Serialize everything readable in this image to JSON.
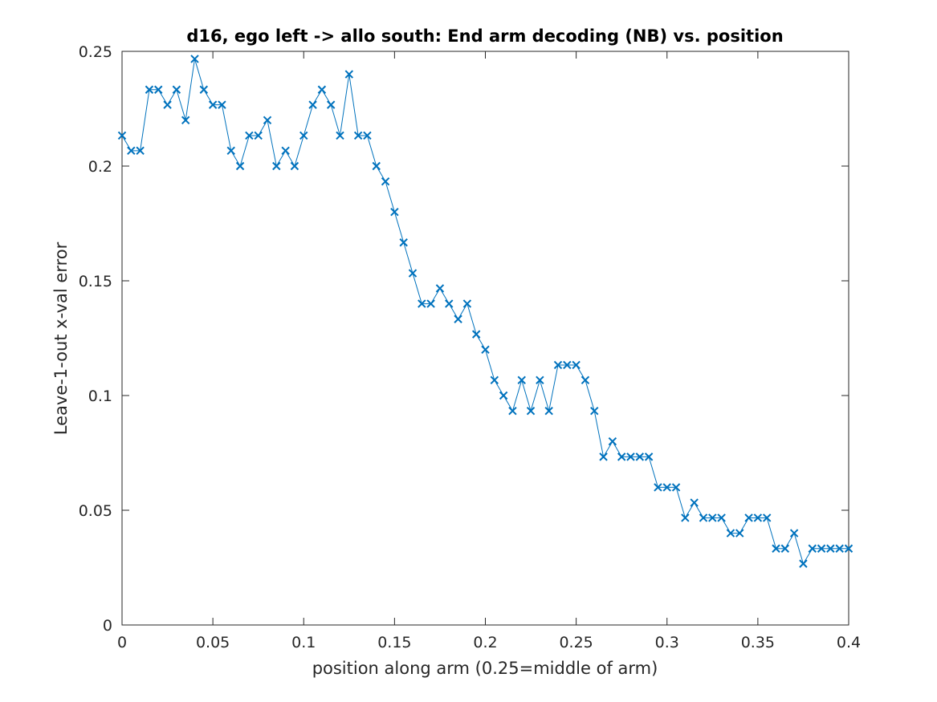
{
  "chart_data": {
    "type": "line",
    "title": "d16, ego left -> allo south: End arm decoding (NB) vs. position",
    "xlabel": "position along arm (0.25=middle of arm)",
    "ylabel": "Leave-1-out x-val error",
    "xlim": [
      0,
      0.4
    ],
    "ylim": [
      0,
      0.25
    ],
    "xticks": [
      0,
      0.05,
      0.1,
      0.15,
      0.2,
      0.25,
      0.3,
      0.35,
      0.4
    ],
    "xtick_labels": [
      "0",
      "0.05",
      "0.1",
      "0.15",
      "0.2",
      "0.25",
      "0.3",
      "0.35",
      "0.4"
    ],
    "yticks": [
      0,
      0.05,
      0.1,
      0.15,
      0.2,
      0.25
    ],
    "ytick_labels": [
      "0",
      "0.05",
      "0.1",
      "0.15",
      "0.2",
      "0.25"
    ],
    "grid": false,
    "marker": "x",
    "color": "#0072BD",
    "series": [
      {
        "x": [
          0,
          0.005,
          0.01,
          0.015,
          0.02,
          0.025,
          0.03,
          0.035,
          0.04,
          0.045,
          0.05,
          0.055,
          0.06,
          0.065,
          0.07,
          0.075,
          0.08,
          0.085,
          0.09,
          0.095,
          0.1,
          0.105,
          0.11,
          0.115,
          0.12,
          0.125,
          0.13,
          0.135,
          0.14,
          0.145,
          0.15,
          0.155,
          0.16,
          0.165,
          0.17,
          0.175,
          0.18,
          0.185,
          0.19,
          0.195,
          0.2,
          0.205,
          0.21,
          0.215,
          0.22,
          0.225,
          0.23,
          0.235,
          0.24,
          0.245,
          0.25,
          0.255,
          0.26,
          0.265,
          0.27,
          0.275,
          0.28,
          0.285,
          0.29,
          0.295,
          0.3,
          0.305,
          0.31,
          0.315,
          0.32,
          0.325,
          0.33,
          0.335,
          0.34,
          0.345,
          0.35,
          0.355,
          0.36,
          0.365,
          0.37,
          0.375,
          0.38,
          0.385,
          0.39,
          0.395,
          0.4
        ],
        "y": [
          0.2133,
          0.2067,
          0.2067,
          0.2333,
          0.2333,
          0.2267,
          0.2333,
          0.22,
          0.2467,
          0.2333,
          0.2267,
          0.2267,
          0.2067,
          0.2,
          0.2133,
          0.2133,
          0.22,
          0.2,
          0.2067,
          0.2,
          0.2133,
          0.2267,
          0.2333,
          0.2267,
          0.2133,
          0.24,
          0.2133,
          0.2133,
          0.2,
          0.1933,
          0.18,
          0.1667,
          0.1533,
          0.14,
          0.14,
          0.1467,
          0.14,
          0.1333,
          0.14,
          0.1267,
          0.12,
          0.1067,
          0.1,
          0.0933,
          0.1067,
          0.0933,
          0.1067,
          0.0933,
          0.1133,
          0.1133,
          0.1133,
          0.1067,
          0.0933,
          0.0733,
          0.08,
          0.0733,
          0.0733,
          0.0733,
          0.0733,
          0.06,
          0.06,
          0.06,
          0.0467,
          0.0533,
          0.0467,
          0.0467,
          0.0467,
          0.04,
          0.04,
          0.0467,
          0.0467,
          0.0467,
          0.0333,
          0.0333,
          0.04,
          0.0267,
          0.0333,
          0.0333,
          0.0333,
          0.0333,
          0.0333
        ]
      }
    ]
  }
}
